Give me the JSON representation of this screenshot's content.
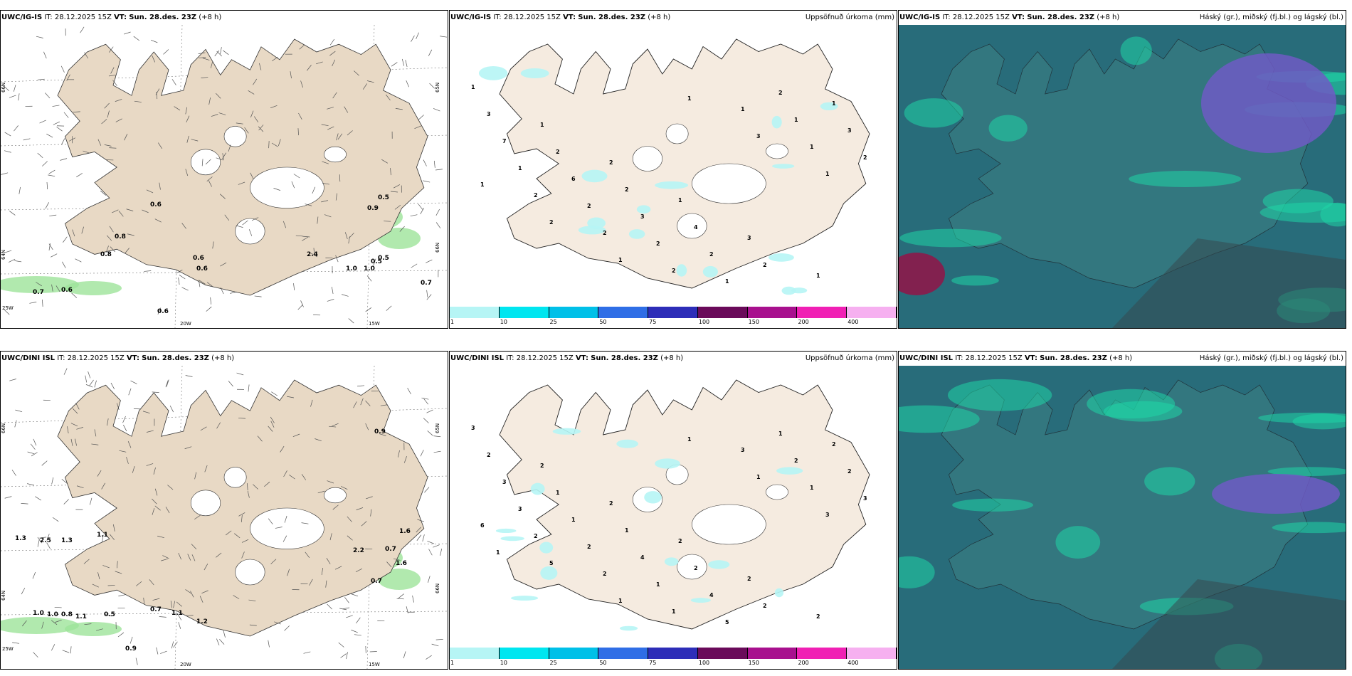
{
  "colors": {
    "land": "#f5ebe0",
    "land_panel1": "#e8d9c5",
    "cloud_low": "#2e7b84",
    "cloud_mid": "#1fd6a6",
    "cloud_high": "#6f5ac4",
    "precip_green": "#2e7d32"
  },
  "rows": [
    {
      "model": "UWC/IG-IS",
      "it_label": "IT:",
      "it_value": "28.12.2025 15Z",
      "vt_label": "VT:",
      "vt_value": "Sun. 28.des. 23Z",
      "lead": "(+8 h)",
      "precip_title": "Uppsöfnuð úrkoma (mm)",
      "cloud_title": "Háský (gr.), miðský (fj.bl.) og lágský (bl.)",
      "wind_labels": [
        "0.5",
        "0.6",
        "0.9",
        "0.8",
        "0.8",
        "0.6",
        "0.6",
        "0.5",
        "1.0",
        "0.7",
        "0.6",
        "0.7",
        "1.0",
        "0.6",
        "0.5",
        "2.4"
      ],
      "lat_labels": [
        "66N",
        "64N",
        "65N",
        "66N"
      ],
      "lon_labels": [
        "20W",
        "15W",
        "25W"
      ],
      "precip_labels": [
        "1",
        "1",
        "2",
        "1",
        "3",
        "1",
        "3",
        "2",
        "2",
        "4",
        "2",
        "1",
        "7",
        "6",
        "3",
        "2",
        "2",
        "3",
        "1",
        "2",
        "2",
        "1",
        "1",
        "2",
        "2",
        "2",
        "2",
        "1",
        "1",
        "1",
        "2",
        "1",
        "1",
        "3",
        "1"
      ]
    },
    {
      "model": "UWC/DINI ISL",
      "it_label": "IT:",
      "it_value": "28.12.2025 15Z",
      "vt_label": "VT:",
      "vt_value": "Sun. 28.des. 23Z",
      "lead": "(+8 h)",
      "precip_title": "Uppsöfnuð úrkoma (mm)",
      "cloud_title": "Háský (gr.), miðský (fj.bl.) og lágský (bl.)",
      "wind_labels": [
        "0.9",
        "1.1",
        "1.3",
        "2.5",
        "1.3",
        "0.7",
        "1.0",
        "1.0",
        "0.8",
        "1.1",
        "0.5",
        "0.7",
        "1.1",
        "1.2",
        "0.9",
        "0.7",
        "2.2",
        "1.6",
        "1.6"
      ],
      "lat_labels": [
        "66N",
        "64N",
        "65N",
        "66N"
      ],
      "lon_labels": [
        "20W",
        "15W",
        "25W"
      ],
      "precip_labels": [
        "3",
        "2",
        "2",
        "2",
        "2",
        "2",
        "2",
        "1",
        "1",
        "2",
        "2",
        "2",
        "3",
        "1",
        "4",
        "4",
        "1",
        "2",
        "3",
        "2",
        "1",
        "5",
        "2",
        "3",
        "2",
        "2",
        "1",
        "3",
        "1",
        "6",
        "5",
        "1",
        "1",
        "1",
        "3",
        "1"
      ]
    }
  ],
  "colorbar": {
    "ticks": [
      "1",
      "10",
      "25",
      "50",
      "75",
      "100",
      "150",
      "200",
      "400"
    ],
    "colors": [
      "#b6f5f5",
      "#00e6f0",
      "#00c0e8",
      "#2f6ee6",
      "#2d2db8",
      "#6a0a5a",
      "#a8108e",
      "#f020b4",
      "#f6b0f0"
    ]
  }
}
